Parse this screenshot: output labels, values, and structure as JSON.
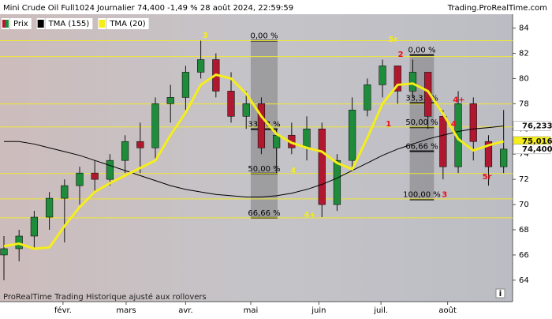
{
  "chart_data": {
    "type": "candlestick",
    "title": "Mini Crude Oil Full1024 Journalier 74,400 -1,49 % 28 août 2024, 22:59:59",
    "source": "Trading.ProRealTime.com",
    "footer": "ProRealTime Trading Historique ajusté aux rollovers",
    "xlim": [
      -0.26,
      33.59
    ],
    "xticks": [
      {
        "value": 3.9,
        "label": "févr."
      },
      {
        "value": 8.07,
        "label": "mars"
      },
      {
        "value": 12.0,
        "label": "avr."
      },
      {
        "value": 16.3,
        "label": "mai"
      },
      {
        "value": 20.8,
        "label": "juin"
      },
      {
        "value": 24.9,
        "label": "juil."
      },
      {
        "value": 29.3,
        "label": "août"
      }
    ],
    "ylim": [
      62.3,
      85.1
    ],
    "yticks": [
      64,
      66,
      68,
      70,
      72,
      74,
      76,
      78,
      80,
      82,
      84
    ],
    "candles": {
      "name": "Prix",
      "up_color": "#1e8c3a",
      "down_color": "#b01830",
      "last_label": "74,400",
      "x": [
        0,
        1,
        2,
        3,
        4,
        5,
        6,
        7,
        8,
        9,
        10,
        11,
        12,
        13,
        14,
        15,
        16,
        17,
        18,
        19,
        20,
        21,
        22,
        23,
        24,
        25,
        26,
        27,
        28,
        29,
        30,
        31,
        32,
        33
      ],
      "open": [
        66,
        66.5,
        67.5,
        69,
        70.5,
        71.5,
        72.5,
        72,
        73.5,
        75,
        74.5,
        78,
        78.5,
        80.5,
        81.5,
        79,
        77,
        78,
        74.5,
        75.5,
        74.5,
        76,
        70,
        73.5,
        77.5,
        79.5,
        81,
        79,
        80.5,
        77,
        73,
        78,
        75,
        73
      ],
      "high": [
        67.5,
        68,
        69.5,
        71,
        72,
        73,
        73.5,
        74,
        75.5,
        76.5,
        78.5,
        79.5,
        81,
        83,
        82,
        80.5,
        79,
        78.5,
        76,
        76.5,
        77,
        76.5,
        74,
        78.5,
        80,
        81.5,
        81,
        81.5,
        80.5,
        77.5,
        79,
        78.5,
        75.5,
        77.5
      ],
      "low": [
        64,
        65.5,
        66.5,
        68,
        67,
        70,
        71,
        71.5,
        72.5,
        72.5,
        73.5,
        76.5,
        77.5,
        80,
        78.5,
        76.5,
        76,
        74,
        72.5,
        74,
        73.5,
        69,
        69.5,
        73,
        77,
        78.5,
        78,
        78.5,
        76,
        72,
        72.5,
        73.5,
        71.5,
        72.5
      ],
      "close": [
        66.5,
        67.5,
        69,
        70.5,
        71.5,
        72.5,
        72,
        73.5,
        75,
        74.5,
        78,
        78.5,
        80.5,
        81.5,
        79,
        77,
        78,
        74.5,
        75.5,
        74.5,
        76,
        70,
        73.5,
        77.5,
        79.5,
        81,
        79,
        80.5,
        77,
        73,
        78,
        75,
        73,
        74.4
      ]
    },
    "series": [
      {
        "name": "TMA (155)",
        "color": "#000000",
        "last_label": "76,233",
        "tag_color": "#ffffff",
        "values": [
          75,
          75,
          74.8,
          74.5,
          74.2,
          73.9,
          73.5,
          73.1,
          72.7,
          72.3,
          71.9,
          71.5,
          71.2,
          71,
          70.8,
          70.7,
          70.6,
          70.6,
          70.7,
          70.9,
          71.2,
          71.6,
          72.1,
          72.7,
          73.3,
          73.9,
          74.4,
          74.8,
          75.2,
          75.5,
          75.8,
          76,
          76.1,
          76.233
        ]
      },
      {
        "name": "TMA (20)",
        "color": "#f5ee1a",
        "last_label": "75,016",
        "tag_color": "#f5ee1a",
        "values": [
          66.7,
          66.9,
          66.5,
          66.6,
          68.3,
          69.8,
          71,
          71.7,
          72.3,
          72.9,
          73.5,
          75.5,
          77.3,
          79.5,
          80.3,
          80,
          78.8,
          77,
          75.6,
          74.9,
          74.5,
          74.2,
          73.3,
          72.8,
          75.3,
          78,
          79.5,
          79.6,
          79,
          77.2,
          75.2,
          74.3,
          74.7,
          75.016
        ]
      }
    ],
    "levels": {
      "color": "#f0e830",
      "values": [
        83.0,
        81.74,
        77.98,
        76.16,
        72.46,
        70.45,
        68.95
      ]
    },
    "fib_boxes": [
      {
        "span": [
          16.3,
          18.07
        ],
        "levels": [
          {
            "value": 83.0,
            "label": "0,00 %"
          },
          {
            "value": 75.98,
            "label": "33,33 %"
          },
          {
            "value": 72.46,
            "label": "50,00 %"
          },
          {
            "value": 68.95,
            "label": "66,66 %"
          }
        ]
      },
      {
        "span": [
          26.8,
          28.4
        ],
        "levels": [
          {
            "value": 81.87,
            "label": "0,00 %"
          },
          {
            "value": 78.05,
            "label": "33,33 %"
          },
          {
            "value": 76.13,
            "label": "50,00 %"
          },
          {
            "value": 74.23,
            "label": "66,66 %"
          },
          {
            "value": 70.4,
            "label": "100,00 %"
          }
        ]
      }
    ],
    "annotations": [
      {
        "text": "3",
        "x": 13.3,
        "y": 83.4,
        "color": "#f5ee1a"
      },
      {
        "text": "5r",
        "x": 25.7,
        "y": 83.1,
        "color": "#f5ee1a"
      },
      {
        "text": "2",
        "x": 26.2,
        "y": 81.9,
        "color": "#e8101a"
      },
      {
        "text": "1",
        "x": 25.4,
        "y": 76.4,
        "color": "#e8101a"
      },
      {
        "text": "4+",
        "x": 30.05,
        "y": 78.3,
        "color": "#e8101a"
      },
      {
        "text": "4",
        "x": 29.7,
        "y": 76.4,
        "color": "#e8101a"
      },
      {
        "text": "4",
        "x": 19.1,
        "y": 72.7,
        "color": "#f5ee1a"
      },
      {
        "text": "4+",
        "x": 20.2,
        "y": 69.2,
        "color": "#f5ee1a"
      },
      {
        "text": "3",
        "x": 29.1,
        "y": 70.8,
        "color": "#e8101a"
      },
      {
        "text": "5r",
        "x": 31.9,
        "y": 72.2,
        "color": "#e8101a"
      }
    ]
  }
}
